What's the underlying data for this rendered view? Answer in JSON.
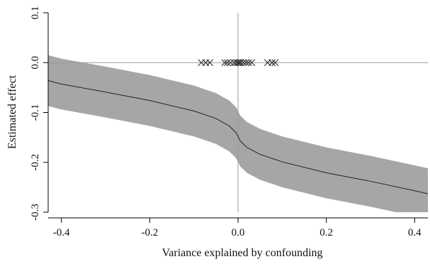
{
  "chart_data": {
    "type": "line",
    "title": "",
    "xlabel": "Variance explained by confounding",
    "ylabel": "Estimated effect",
    "xlim": [
      -0.43,
      0.43
    ],
    "ylim": [
      -0.3,
      0.1
    ],
    "x_ticks": [
      -0.4,
      -0.2,
      0.0,
      0.2,
      0.4
    ],
    "y_ticks": [
      -0.3,
      -0.2,
      -0.1,
      0.0,
      0.1
    ],
    "x_tick_labels": [
      "-0.4",
      "-0.2",
      "0.0",
      "0.2",
      "0.4"
    ],
    "y_tick_labels": [
      "-0.3",
      "-0.2",
      "-0.1",
      "0.0",
      "0.1"
    ],
    "reference_lines": {
      "horizontal_y": 0.0,
      "vertical_x": 0.0,
      "color": "#9a9a9a"
    },
    "band_color": "#a6a6a6",
    "line_color": "#222222",
    "marker_color": "#333333",
    "grid": false,
    "series": [
      {
        "kind": "estimate",
        "x": [
          -0.43,
          -0.4,
          -0.3,
          -0.2,
          -0.1,
          -0.05,
          -0.02,
          -0.005,
          0.0,
          0.005,
          0.02,
          0.05,
          0.1,
          0.2,
          0.3,
          0.4,
          0.43
        ],
        "y": [
          -0.036,
          -0.043,
          -0.059,
          -0.076,
          -0.097,
          -0.112,
          -0.127,
          -0.14,
          -0.148,
          -0.157,
          -0.17,
          -0.184,
          -0.199,
          -0.221,
          -0.238,
          -0.257,
          -0.263
        ]
      },
      {
        "kind": "interval",
        "x": [
          -0.43,
          -0.4,
          -0.3,
          -0.2,
          -0.1,
          -0.05,
          -0.02,
          -0.005,
          0.0,
          0.005,
          0.02,
          0.05,
          0.1,
          0.2,
          0.3,
          0.4,
          0.43
        ],
        "lower": [
          -0.087,
          -0.094,
          -0.11,
          -0.127,
          -0.148,
          -0.163,
          -0.178,
          -0.191,
          -0.199,
          -0.208,
          -0.221,
          -0.235,
          -0.25,
          -0.272,
          -0.289,
          -0.308,
          -0.314
        ],
        "upper": [
          0.015,
          0.008,
          -0.008,
          -0.025,
          -0.046,
          -0.061,
          -0.076,
          -0.089,
          -0.097,
          -0.106,
          -0.119,
          -0.133,
          -0.148,
          -0.17,
          -0.187,
          -0.206,
          -0.212
        ]
      },
      {
        "kind": "observed",
        "marker": "x",
        "x": [
          -0.083,
          -0.073,
          -0.064,
          -0.03,
          -0.024,
          -0.017,
          -0.009,
          -0.004,
          0.0,
          0.003,
          0.006,
          0.012,
          0.018,
          0.024,
          0.031,
          0.067,
          0.077,
          0.084
        ],
        "y": [
          0,
          0,
          0,
          0,
          0,
          0,
          0,
          0,
          0,
          0,
          0,
          0,
          0,
          0,
          0,
          0,
          0,
          0
        ]
      }
    ]
  }
}
